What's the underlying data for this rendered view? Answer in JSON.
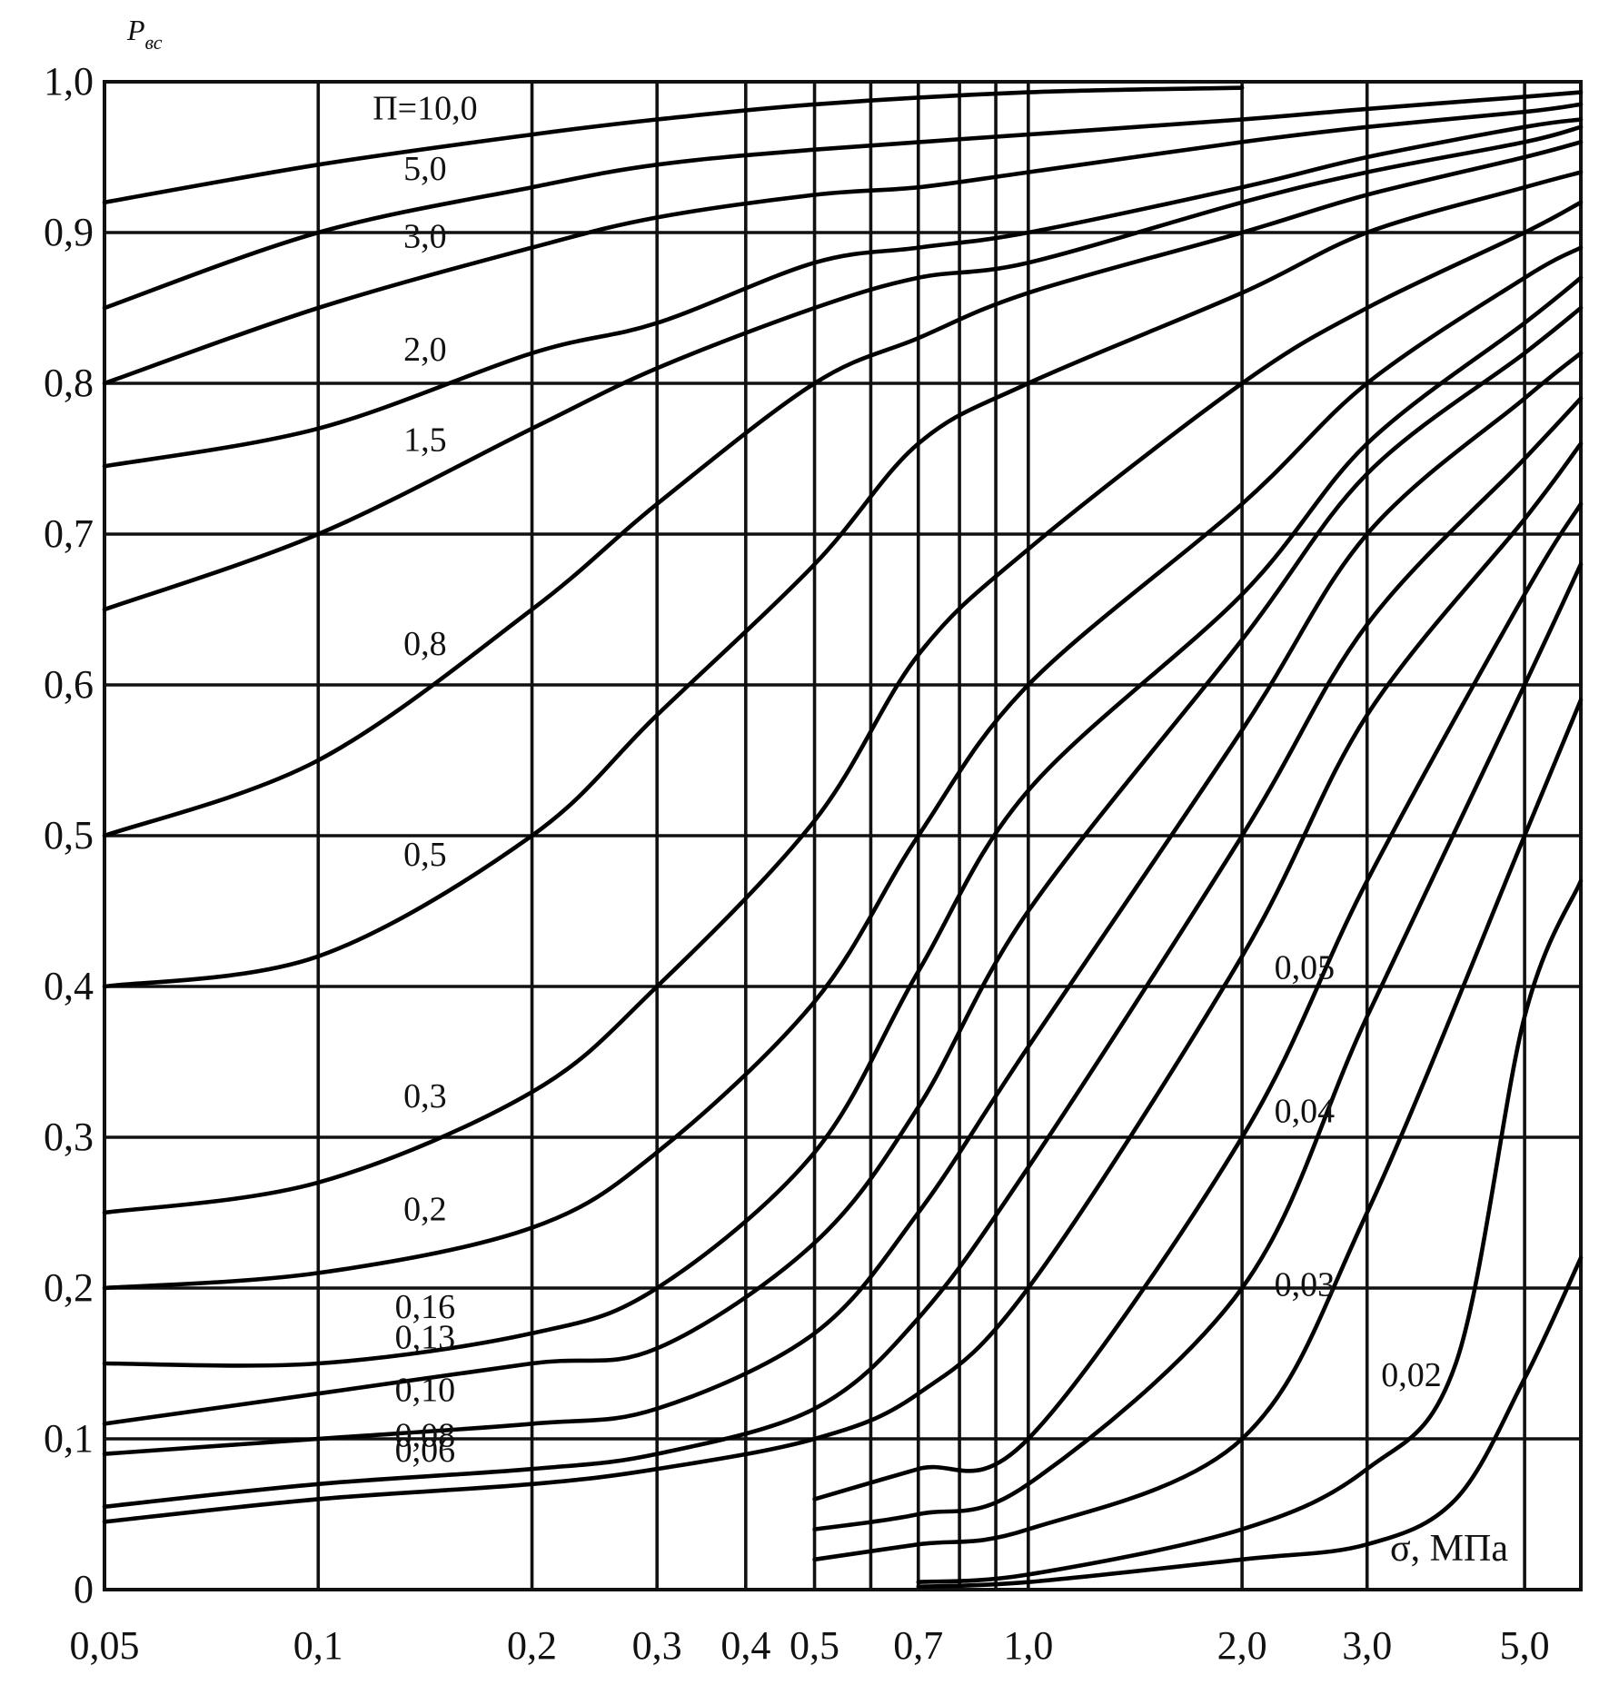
{
  "chart_data": {
    "type": "line",
    "ylabel": "P",
    "ylabel_sub": "вс",
    "xlabel": "σ, МПа",
    "x_scale": "log",
    "xlim": [
      0.05,
      6.0
    ],
    "ylim": [
      0,
      1.0
    ],
    "grid": true,
    "x_ticks": [
      {
        "value": 0.05,
        "label": "0,05"
      },
      {
        "value": 0.1,
        "label": "0,1"
      },
      {
        "value": 0.2,
        "label": "0,2"
      },
      {
        "value": 0.3,
        "label": "0,3"
      },
      {
        "value": 0.4,
        "label": "0,4"
      },
      {
        "value": 0.5,
        "label": "0,5"
      },
      {
        "value": 0.7,
        "label": "0,7"
      },
      {
        "value": 1.0,
        "label": "1,0"
      },
      {
        "value": 2.0,
        "label": "2,0"
      },
      {
        "value": 3.0,
        "label": "3,0"
      },
      {
        "value": 5.0,
        "label": "5,0"
      }
    ],
    "y_ticks": [
      {
        "value": 0,
        "label": "0"
      },
      {
        "value": 0.1,
        "label": "0,1"
      },
      {
        "value": 0.2,
        "label": "0,2"
      },
      {
        "value": 0.3,
        "label": "0,3"
      },
      {
        "value": 0.4,
        "label": "0,4"
      },
      {
        "value": 0.5,
        "label": "0,5"
      },
      {
        "value": 0.6,
        "label": "0,6"
      },
      {
        "value": 0.7,
        "label": "0,7"
      },
      {
        "value": 0.8,
        "label": "0,8"
      },
      {
        "value": 0.9,
        "label": "0,9"
      },
      {
        "value": 1.0,
        "label": "1,0"
      }
    ],
    "extra_vertical_gridlines": [
      0.6,
      0.8,
      0.9
    ],
    "series": [
      {
        "name": "П=10,0",
        "x": [
          0.05,
          0.1,
          0.2,
          0.3,
          0.5,
          1.0,
          2.0
        ],
        "y": [
          0.92,
          0.945,
          0.965,
          0.975,
          0.985,
          0.993,
          0.996
        ]
      },
      {
        "name": "5,0",
        "x": [
          0.05,
          0.1,
          0.2,
          0.3,
          0.5,
          1.0,
          2.0,
          3.0,
          5.0,
          6.0
        ],
        "y": [
          0.85,
          0.9,
          0.93,
          0.945,
          0.955,
          0.965,
          0.975,
          0.982,
          0.99,
          0.993
        ]
      },
      {
        "name": "3,0",
        "x": [
          0.05,
          0.1,
          0.2,
          0.3,
          0.5,
          0.7,
          1.0,
          2.0,
          3.0,
          5.0,
          6.0
        ],
        "y": [
          0.8,
          0.85,
          0.89,
          0.91,
          0.925,
          0.93,
          0.94,
          0.96,
          0.97,
          0.98,
          0.985
        ]
      },
      {
        "name": "2,0",
        "x": [
          0.05,
          0.1,
          0.2,
          0.3,
          0.5,
          0.7,
          1.0,
          2.0,
          3.0,
          5.0,
          6.0
        ],
        "y": [
          0.745,
          0.77,
          0.82,
          0.84,
          0.88,
          0.89,
          0.9,
          0.93,
          0.95,
          0.97,
          0.975
        ]
      },
      {
        "name": "1,5",
        "x": [
          0.05,
          0.1,
          0.2,
          0.3,
          0.5,
          0.7,
          1.0,
          2.0,
          3.0,
          5.0,
          6.0
        ],
        "y": [
          0.65,
          0.7,
          0.77,
          0.81,
          0.85,
          0.87,
          0.88,
          0.92,
          0.94,
          0.96,
          0.97
        ]
      },
      {
        "name": "0,8",
        "x": [
          0.05,
          0.1,
          0.2,
          0.3,
          0.5,
          0.7,
          1.0,
          2.0,
          3.0,
          5.0,
          6.0
        ],
        "y": [
          0.5,
          0.55,
          0.65,
          0.72,
          0.8,
          0.83,
          0.86,
          0.9,
          0.925,
          0.95,
          0.96
        ]
      },
      {
        "name": "0,5",
        "x": [
          0.05,
          0.1,
          0.2,
          0.3,
          0.5,
          0.7,
          1.0,
          2.0,
          3.0,
          5.0,
          6.0
        ],
        "y": [
          0.4,
          0.42,
          0.5,
          0.58,
          0.68,
          0.76,
          0.8,
          0.86,
          0.9,
          0.93,
          0.94
        ]
      },
      {
        "name": "0,3",
        "x": [
          0.05,
          0.1,
          0.2,
          0.3,
          0.5,
          0.7,
          1.0,
          2.0,
          3.0,
          5.0,
          6.0
        ],
        "y": [
          0.25,
          0.27,
          0.33,
          0.4,
          0.51,
          0.62,
          0.69,
          0.8,
          0.85,
          0.9,
          0.92
        ]
      },
      {
        "name": "0,2",
        "x": [
          0.05,
          0.1,
          0.2,
          0.3,
          0.5,
          0.7,
          1.0,
          2.0,
          3.0,
          5.0,
          6.0
        ],
        "y": [
          0.2,
          0.21,
          0.24,
          0.29,
          0.39,
          0.5,
          0.6,
          0.72,
          0.8,
          0.87,
          0.89
        ]
      },
      {
        "name": "0,16",
        "x": [
          0.05,
          0.1,
          0.2,
          0.3,
          0.5,
          0.7,
          1.0,
          2.0,
          3.0,
          5.0,
          6.0
        ],
        "y": [
          0.15,
          0.15,
          0.17,
          0.2,
          0.29,
          0.41,
          0.53,
          0.66,
          0.76,
          0.84,
          0.87
        ]
      },
      {
        "name": "0,13",
        "x": [
          0.05,
          0.1,
          0.2,
          0.3,
          0.5,
          0.7,
          1.0,
          2.0,
          3.0,
          5.0,
          6.0
        ],
        "y": [
          0.11,
          0.13,
          0.15,
          0.16,
          0.23,
          0.32,
          0.45,
          0.63,
          0.74,
          0.82,
          0.85
        ]
      },
      {
        "name": "0,10",
        "x": [
          0.05,
          0.1,
          0.2,
          0.3,
          0.5,
          0.7,
          1.0,
          2.0,
          3.0,
          5.0,
          6.0
        ],
        "y": [
          0.09,
          0.1,
          0.11,
          0.12,
          0.17,
          0.25,
          0.36,
          0.57,
          0.7,
          0.79,
          0.82
        ]
      },
      {
        "name": "0,08",
        "x": [
          0.05,
          0.1,
          0.2,
          0.3,
          0.5,
          0.7,
          1.0,
          2.0,
          3.0,
          5.0,
          6.0
        ],
        "y": [
          0.055,
          0.07,
          0.08,
          0.09,
          0.12,
          0.18,
          0.28,
          0.5,
          0.64,
          0.75,
          0.79
        ]
      },
      {
        "name": "0,06",
        "x": [
          0.05,
          0.1,
          0.2,
          0.3,
          0.5,
          0.7,
          1.0,
          2.0,
          3.0,
          5.0,
          6.0
        ],
        "y": [
          0.045,
          0.06,
          0.07,
          0.08,
          0.1,
          0.13,
          0.2,
          0.42,
          0.58,
          0.71,
          0.76
        ]
      },
      {
        "name": "0,05",
        "x": [
          0.5,
          0.7,
          1.0,
          2.0,
          3.0,
          5.0,
          6.0
        ],
        "y": [
          0.06,
          0.08,
          0.1,
          0.3,
          0.47,
          0.66,
          0.72
        ]
      },
      {
        "name": "0,04",
        "x": [
          0.5,
          0.7,
          1.0,
          2.0,
          3.0,
          5.0,
          6.0
        ],
        "y": [
          0.04,
          0.05,
          0.07,
          0.2,
          0.38,
          0.6,
          0.68
        ]
      },
      {
        "name": "0,03",
        "x": [
          0.5,
          0.7,
          1.0,
          2.0,
          3.0,
          5.0,
          6.0
        ],
        "y": [
          0.02,
          0.03,
          0.04,
          0.1,
          0.25,
          0.5,
          0.59
        ]
      },
      {
        "name": "0,02",
        "x": [
          0.7,
          1.0,
          2.0,
          3.0,
          4.0,
          5.0,
          6.0
        ],
        "y": [
          0.005,
          0.01,
          0.04,
          0.08,
          0.15,
          0.38,
          0.47
        ]
      },
      {
        "name": "",
        "x": [
          0.7,
          1.0,
          2.0,
          3.0,
          4.0,
          5.0,
          6.0
        ],
        "y": [
          0.002,
          0.005,
          0.02,
          0.03,
          0.06,
          0.14,
          0.22
        ]
      }
    ]
  }
}
